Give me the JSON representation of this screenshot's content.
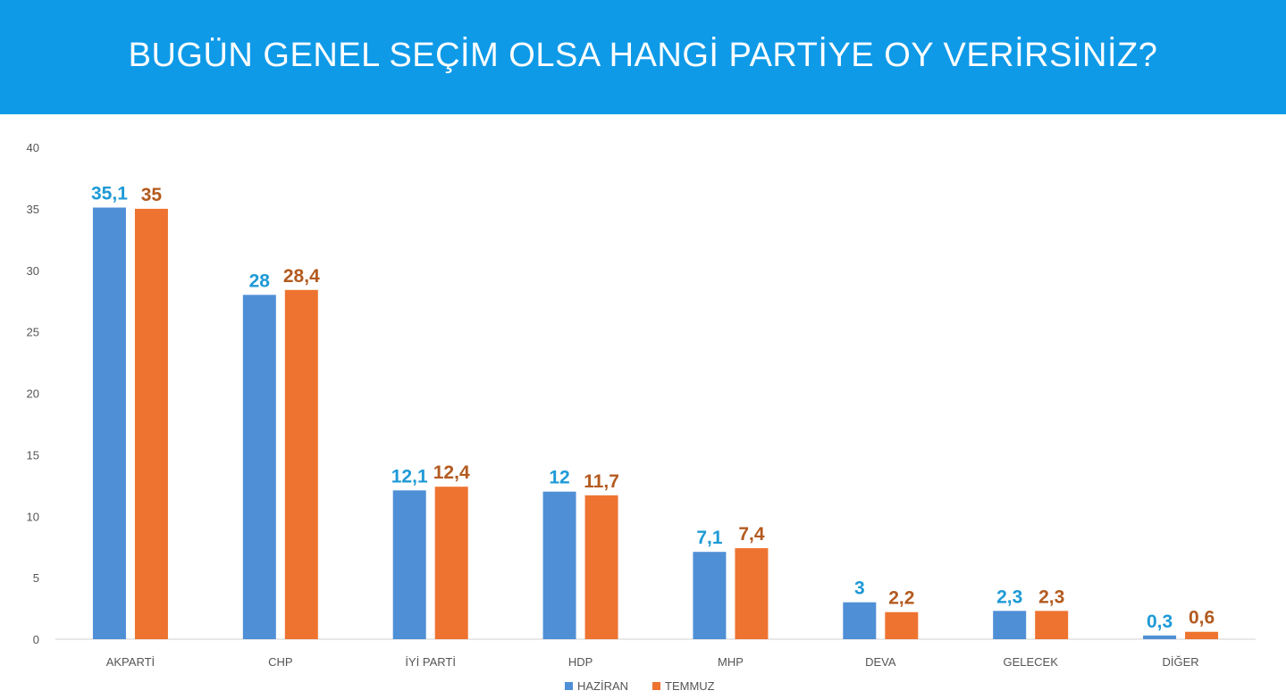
{
  "header": {
    "title": "BUGÜN GENEL SEÇİM OLSA HANGİ PARTİYE OY VERİRSİNİZ?"
  },
  "chart_data": {
    "type": "bar",
    "title": "BUGÜN GENEL SEÇİM OLSA HANGİ PARTİYE OY VERİRSİNİZ?",
    "categories": [
      "AKPARTİ",
      "CHP",
      "İYİ PARTİ",
      "HDP",
      "MHP",
      "DEVA",
      "GELECEK",
      "DİĞER"
    ],
    "series": [
      {
        "name": "HAZİRAN",
        "color": "#4f8fd6",
        "label_color": "#1e9ad6",
        "values": [
          35.1,
          28,
          12.1,
          12,
          7.1,
          3,
          2.3,
          0.3
        ],
        "labels": [
          "35,1",
          "28",
          "12,1",
          "12",
          "7,1",
          "3",
          "2,3",
          "0,3"
        ]
      },
      {
        "name": "TEMMUZ",
        "color": "#ee7330",
        "label_color": "#b35a1f",
        "values": [
          35,
          28.4,
          12.4,
          11.7,
          7.4,
          2.2,
          2.3,
          0.6
        ],
        "labels": [
          "35",
          "28,4",
          "12,4",
          "11,7",
          "7,4",
          "2,2",
          "2,3",
          "0,6"
        ]
      }
    ],
    "yticks": [
      "0",
      "5",
      "10",
      "15",
      "20",
      "25",
      "30",
      "35",
      "40"
    ],
    "ylim": [
      0,
      40
    ],
    "xlabel": "",
    "ylabel": "",
    "grid": false,
    "legend_position": "bottom"
  }
}
